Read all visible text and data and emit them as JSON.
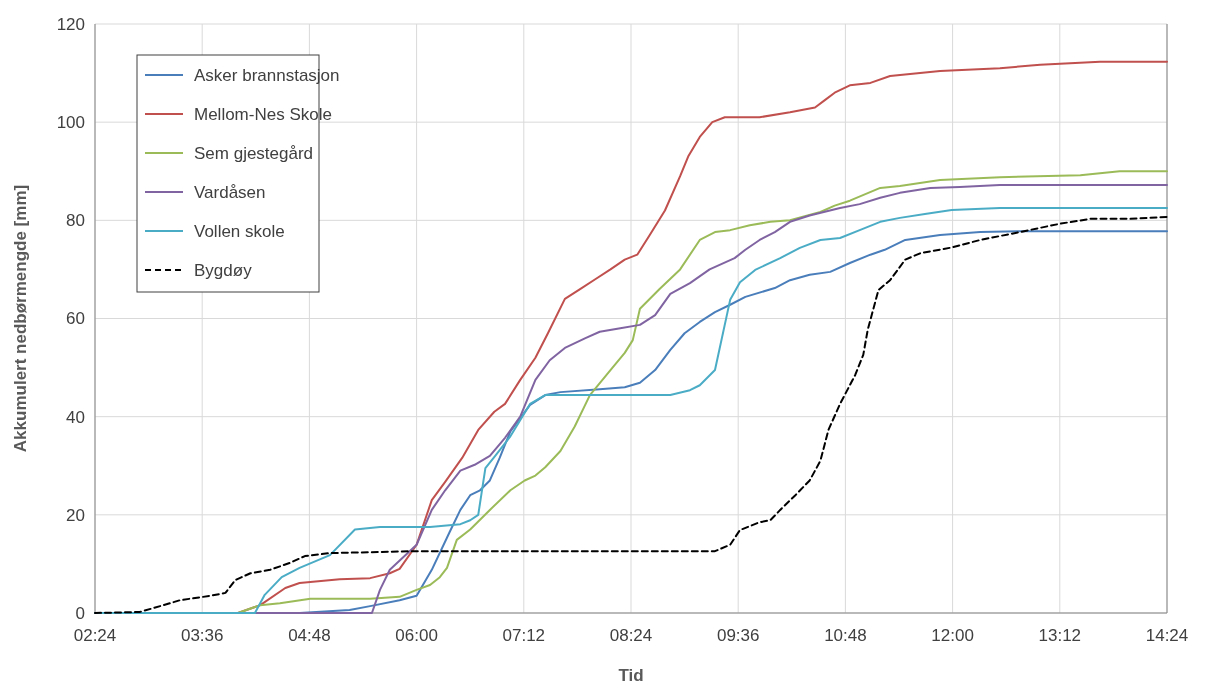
{
  "chart_data": {
    "type": "line",
    "xlabel": "Tid",
    "ylabel": "Akkumulert nedbørmengde [mm]",
    "xlim": [
      2.4,
      14.4
    ],
    "ylim": [
      0,
      120
    ],
    "xticks": [
      {
        "value": 2.4,
        "label": "02:24"
      },
      {
        "value": 3.6,
        "label": "03:36"
      },
      {
        "value": 4.8,
        "label": "04:48"
      },
      {
        "value": 6,
        "label": "06:00"
      },
      {
        "value": 7.2,
        "label": "07:12"
      },
      {
        "value": 8.4,
        "label": "08:24"
      },
      {
        "value": 9.6,
        "label": "09:36"
      },
      {
        "value": 10.8,
        "label": "10:48"
      },
      {
        "value": 12,
        "label": "12:00"
      },
      {
        "value": 13.2,
        "label": "13:12"
      },
      {
        "value": 14.4,
        "label": "14:24"
      }
    ],
    "yticks": [
      0,
      20,
      40,
      60,
      80,
      100,
      120
    ],
    "grid": true,
    "legend": "top left",
    "marker": "none",
    "series": [
      {
        "name": "Asker brannstasjon",
        "color": "#4a7ebb",
        "x": [
          2.4,
          4.69,
          5.25,
          5.48,
          5.81,
          6.0,
          6.17,
          6.37,
          6.49,
          6.6,
          6.71,
          6.82,
          6.93,
          7.05,
          7.27,
          7.44,
          7.61,
          8.05,
          8.33,
          8.5,
          8.67,
          8.84,
          9.0,
          9.17,
          9.34,
          9.51,
          9.68,
          10.01,
          10.18,
          10.4,
          10.63,
          10.85,
          11.08,
          11.24,
          11.47,
          11.86,
          12.31,
          12.75,
          14.4
        ],
        "values": [
          0,
          0,
          0.6,
          1.4,
          2.6,
          3.5,
          8.8,
          16.5,
          21,
          24,
          25,
          27,
          31.6,
          37,
          42.4,
          44.4,
          45,
          45.6,
          46,
          46.9,
          49.5,
          53.6,
          57,
          59.3,
          61.3,
          62.8,
          64.4,
          66.2,
          67.8,
          68.9,
          69.5,
          71.3,
          73,
          74,
          76,
          77,
          77.6,
          77.8,
          77.8
        ]
      },
      {
        "name": "Mellom-Nes Skole",
        "color": "#c0504d",
        "x": [
          2.4,
          4.0,
          4.25,
          4.53,
          4.69,
          5.14,
          5.48,
          5.7,
          5.81,
          6.0,
          6.17,
          6.32,
          6.51,
          6.69,
          6.87,
          6.99,
          7.16,
          7.33,
          7.47,
          7.66,
          7.83,
          8.0,
          8.17,
          8.33,
          8.47,
          8.61,
          8.78,
          8.95,
          9.04,
          9.17,
          9.31,
          9.45,
          9.84,
          10.18,
          10.46,
          10.57,
          10.68,
          10.85,
          11.08,
          11.3,
          11.86,
          12.53,
          12.98,
          13.65,
          14.4
        ],
        "values": [
          0,
          0,
          1.6,
          5.1,
          6.1,
          6.9,
          7.1,
          8.1,
          9,
          13.9,
          23,
          26.7,
          31.6,
          37.3,
          41,
          42.6,
          47.5,
          52,
          57,
          64,
          66,
          68,
          70,
          72,
          73,
          77,
          82,
          89,
          93,
          97,
          100,
          101,
          101,
          102,
          103,
          104.5,
          106,
          107.5,
          108,
          109.4,
          110.4,
          111,
          111.7,
          112.3,
          112.3
        ]
      },
      {
        "name": "Sem gjestegård",
        "color": "#9bbb59",
        "x": [
          2.4,
          4.0,
          4.25,
          4.47,
          4.81,
          5.48,
          5.81,
          6.0,
          6.15,
          6.26,
          6.34,
          6.45,
          6.6,
          6.82,
          7.05,
          7.21,
          7.33,
          7.44,
          7.61,
          7.77,
          7.94,
          8.17,
          8.33,
          8.42,
          8.5,
          8.72,
          8.95,
          9.17,
          9.34,
          9.51,
          9.73,
          9.96,
          10.18,
          10.52,
          10.68,
          10.85,
          11.19,
          11.41,
          11.86,
          12.53,
          13.43,
          13.87,
          14.4
        ],
        "values": [
          0,
          0,
          1.6,
          2,
          2.9,
          2.9,
          3.3,
          4.7,
          5.7,
          7.3,
          9.2,
          14.9,
          17,
          21,
          25,
          27,
          28,
          29.7,
          33,
          38,
          44.4,
          49.5,
          53,
          55.6,
          62,
          66,
          70,
          76,
          77.6,
          78,
          79,
          79.7,
          80,
          81.7,
          83,
          84,
          86.6,
          87,
          88.2,
          88.8,
          89.2,
          90,
          90
        ]
      },
      {
        "name": "Vardåsen",
        "color": "#8064a2",
        "x": [
          2.4,
          5.5,
          5.59,
          5.7,
          6.0,
          6.17,
          6.32,
          6.49,
          6.65,
          6.82,
          6.99,
          7.16,
          7.33,
          7.49,
          7.66,
          7.89,
          8.05,
          8.28,
          8.5,
          8.67,
          8.84,
          9.06,
          9.28,
          9.56,
          9.68,
          9.84,
          10.01,
          10.18,
          10.4,
          10.74,
          10.96,
          11.19,
          11.41,
          11.75,
          12.08,
          12.53,
          14.4
        ],
        "values": [
          0,
          0,
          4.7,
          8.8,
          13.9,
          21,
          25,
          29,
          30.2,
          32,
          35.7,
          40,
          47.5,
          51.5,
          54,
          56,
          57.3,
          58,
          58.7,
          60.7,
          65,
          67.2,
          70,
          72.3,
          74,
          76,
          77.6,
          79.7,
          81,
          82.5,
          83.3,
          84.6,
          85.6,
          86.6,
          86.8,
          87.2,
          87.2
        ]
      },
      {
        "name": "Vollen skole",
        "color": "#4bacc6",
        "x": [
          2.4,
          4.19,
          4.3,
          4.49,
          4.69,
          5.03,
          5.31,
          5.59,
          6.15,
          6.49,
          6.6,
          6.69,
          6.77,
          6.88,
          7.05,
          7.27,
          7.44,
          7.61,
          8.84,
          9.06,
          9.17,
          9.34,
          9.51,
          9.62,
          9.79,
          10.07,
          10.29,
          10.52,
          10.74,
          10.96,
          11.19,
          11.41,
          11.69,
          11.99,
          12.53,
          14.4
        ],
        "values": [
          0,
          0,
          3.7,
          7.3,
          9.2,
          11.8,
          17,
          17.5,
          17.5,
          18.1,
          18.9,
          20,
          29.5,
          32,
          36,
          42.6,
          44.4,
          44.4,
          44.4,
          45.4,
          46.4,
          49.5,
          63.8,
          67.4,
          69.9,
          72.3,
          74.4,
          76,
          76.4,
          78,
          79.7,
          80.5,
          81.3,
          82.1,
          82.5,
          82.5
        ]
      },
      {
        "name": "Bygdøy",
        "color": "#000000",
        "line_style": "dashed",
        "x": [
          2.4,
          2.9,
          3.13,
          3.35,
          3.69,
          3.86,
          3.97,
          4.14,
          4.36,
          4.58,
          4.75,
          5.03,
          6.0,
          9.34,
          9.51,
          9.62,
          9.84,
          9.96,
          10.07,
          10.24,
          10.4,
          10.52,
          10.61,
          10.74,
          10.91,
          11.0,
          11.05,
          11.17,
          11.3,
          11.47,
          11.64,
          11.97,
          12.31,
          12.75,
          13.2,
          13.54,
          13.99,
          14.4
        ],
        "values": [
          0,
          0.2,
          1.4,
          2.6,
          3.5,
          4.1,
          6.7,
          8.1,
          8.8,
          10.2,
          11.6,
          12.2,
          12.6,
          12.6,
          13.9,
          16.9,
          18.5,
          18.9,
          21,
          24,
          27,
          31,
          37.3,
          42.6,
          48.5,
          52.6,
          57.7,
          65.8,
          67.8,
          72,
          73.3,
          74.4,
          76,
          77.6,
          79.3,
          80.3,
          80.3,
          80.7
        ]
      }
    ]
  }
}
